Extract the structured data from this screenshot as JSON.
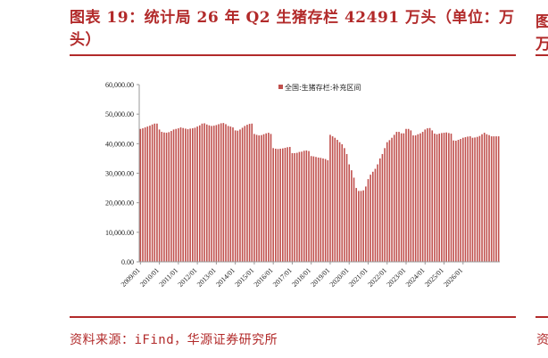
{
  "figure": {
    "title": "图表 19：统计局 26 年 Q2 生猪存栏 42491 万头（单位：万头）",
    "source": "资料来源：iFind，华源证券研究所",
    "next_title_fragment_1": "图",
    "next_title_fragment_2": "万",
    "next_source_fragment": "资"
  },
  "colors": {
    "accent": "#b22a2a",
    "bar": "#c0504d",
    "axis": "#999999"
  },
  "chart_data": {
    "type": "bar",
    "series": [
      {
        "name": "全国:生猪存栏:补充区间",
        "values": [
          45000,
          45200,
          45500,
          45800,
          46100,
          46500,
          46800,
          46800,
          44800,
          44000,
          43800,
          43700,
          43900,
          44300,
          44800,
          45000,
          45200,
          45500,
          45300,
          45100,
          44900,
          45100,
          45200,
          45400,
          45800,
          46200,
          46800,
          46900,
          46500,
          46200,
          46000,
          46100,
          46300,
          46600,
          46900,
          47000,
          46600,
          46000,
          45800,
          45500,
          44500,
          44400,
          44800,
          45400,
          46000,
          46400,
          46700,
          46800,
          43300,
          43000,
          42800,
          42900,
          43200,
          43500,
          43700,
          43300,
          38500,
          38300,
          38200,
          38300,
          38400,
          38600,
          38800,
          38900,
          36800,
          36800,
          36900,
          37200,
          37300,
          37600,
          37700,
          37500,
          35800,
          35700,
          35500,
          35300,
          35200,
          35000,
          34800,
          34400,
          43000,
          42500,
          42000,
          41300,
          40500,
          39800,
          38500,
          36500,
          33000,
          31000,
          28500,
          25000,
          24000,
          24000,
          24200,
          25500,
          28000,
          29500,
          30500,
          31500,
          33000,
          35000,
          36500,
          38500,
          40500,
          41200,
          42000,
          43000,
          44000,
          44000,
          43500,
          43500,
          45000,
          45000,
          44500,
          42800,
          42800,
          43200,
          43500,
          44000,
          44800,
          45200,
          45300,
          44500,
          43400,
          43200,
          43400,
          43600,
          43700,
          43800,
          43600,
          43400,
          41100,
          41000,
          41300,
          41600,
          42000,
          42200,
          42400,
          42500,
          42000,
          42100,
          42300,
          42600,
          43200,
          43700,
          43200,
          42900,
          42491,
          42491,
          42491,
          42491
        ]
      }
    ],
    "x_labels": [
      "2009/01",
      "2010/01",
      "2011/01",
      "2012/01",
      "2013/01",
      "2014/01",
      "2015/01",
      "2016/01",
      "2017/01",
      "2018/01",
      "2019/01",
      "2020/01",
      "2021/01",
      "2022/01",
      "2023/01",
      "2024/01",
      "2025/01",
      "2026/01"
    ],
    "y_ticks": [
      "0.00",
      "10,000.00",
      "20,000.00",
      "30,000.00",
      "40,000.00",
      "50,000.00",
      "60,000.00"
    ],
    "ylim": [
      0,
      60000
    ],
    "legend_position": "top-center",
    "grid": false
  }
}
